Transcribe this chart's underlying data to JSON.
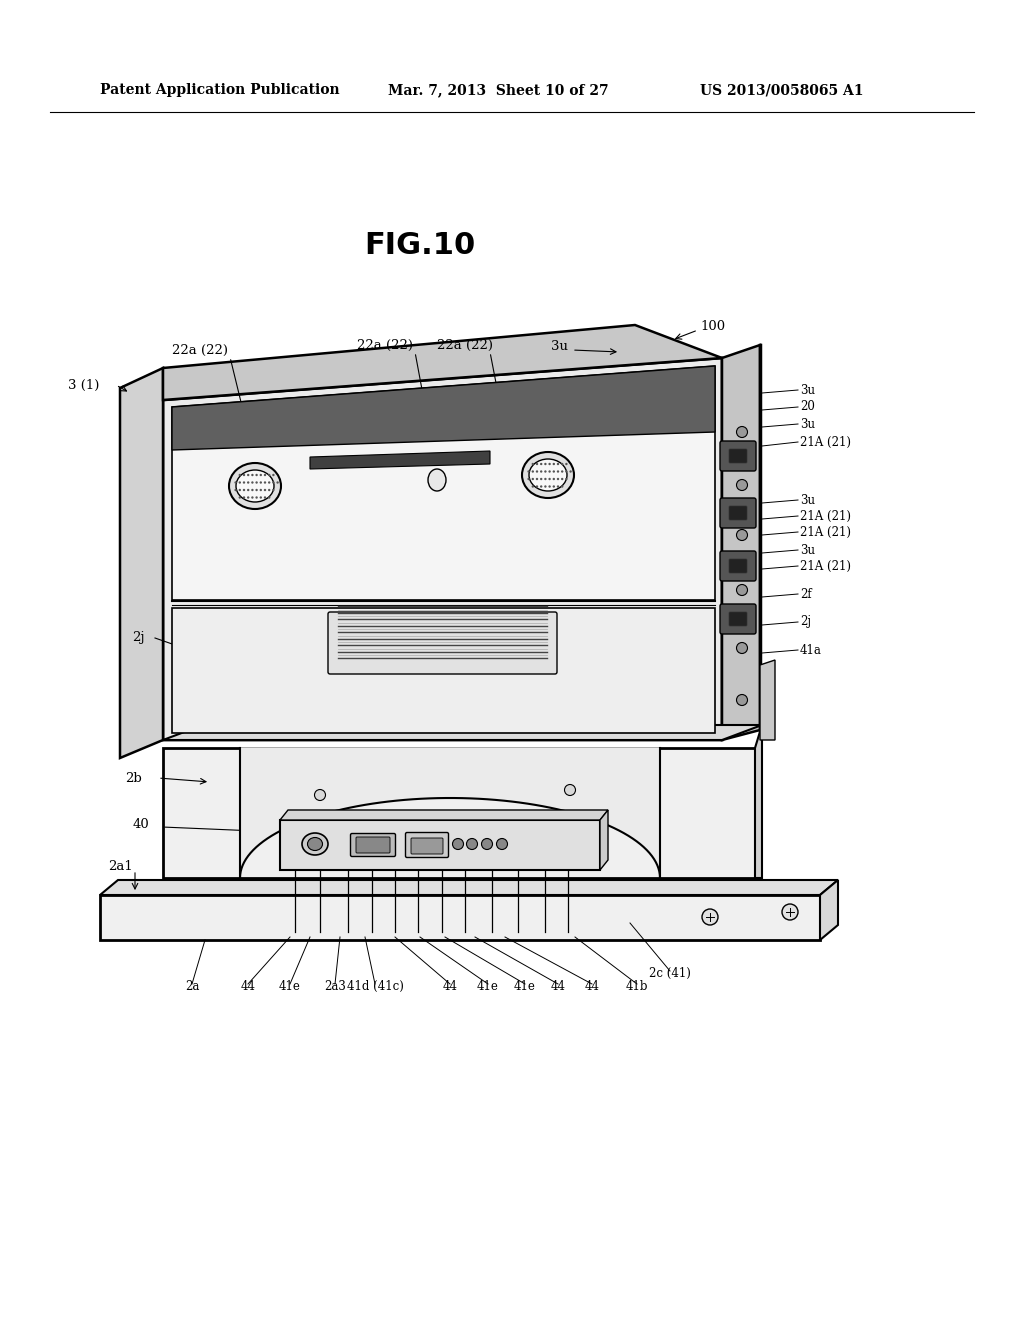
{
  "bg_color": "#ffffff",
  "header_left": "Patent Application Publication",
  "header_mid": "Mar. 7, 2013  Sheet 10 of 27",
  "header_right": "US 2013/0058065 A1",
  "fig_title": "FIG.10",
  "label_100": "100",
  "label_3_1": "3 (1)",
  "label_22a_22": "22a (22)",
  "label_3u": "3u",
  "label_20": "20",
  "label_21A_21": "21A (21)",
  "label_2f": "2f",
  "label_2j": "2j",
  "label_41a": "41a",
  "label_2b": "2b",
  "label_40": "40",
  "label_2a1": "2a1",
  "label_2a": "2a",
  "label_44": "44",
  "label_41e": "41e",
  "label_2a3": "2a3",
  "label_41d_41c": "41d (41c)",
  "label_41b": "41b",
  "label_2c_41": "2c (41)"
}
